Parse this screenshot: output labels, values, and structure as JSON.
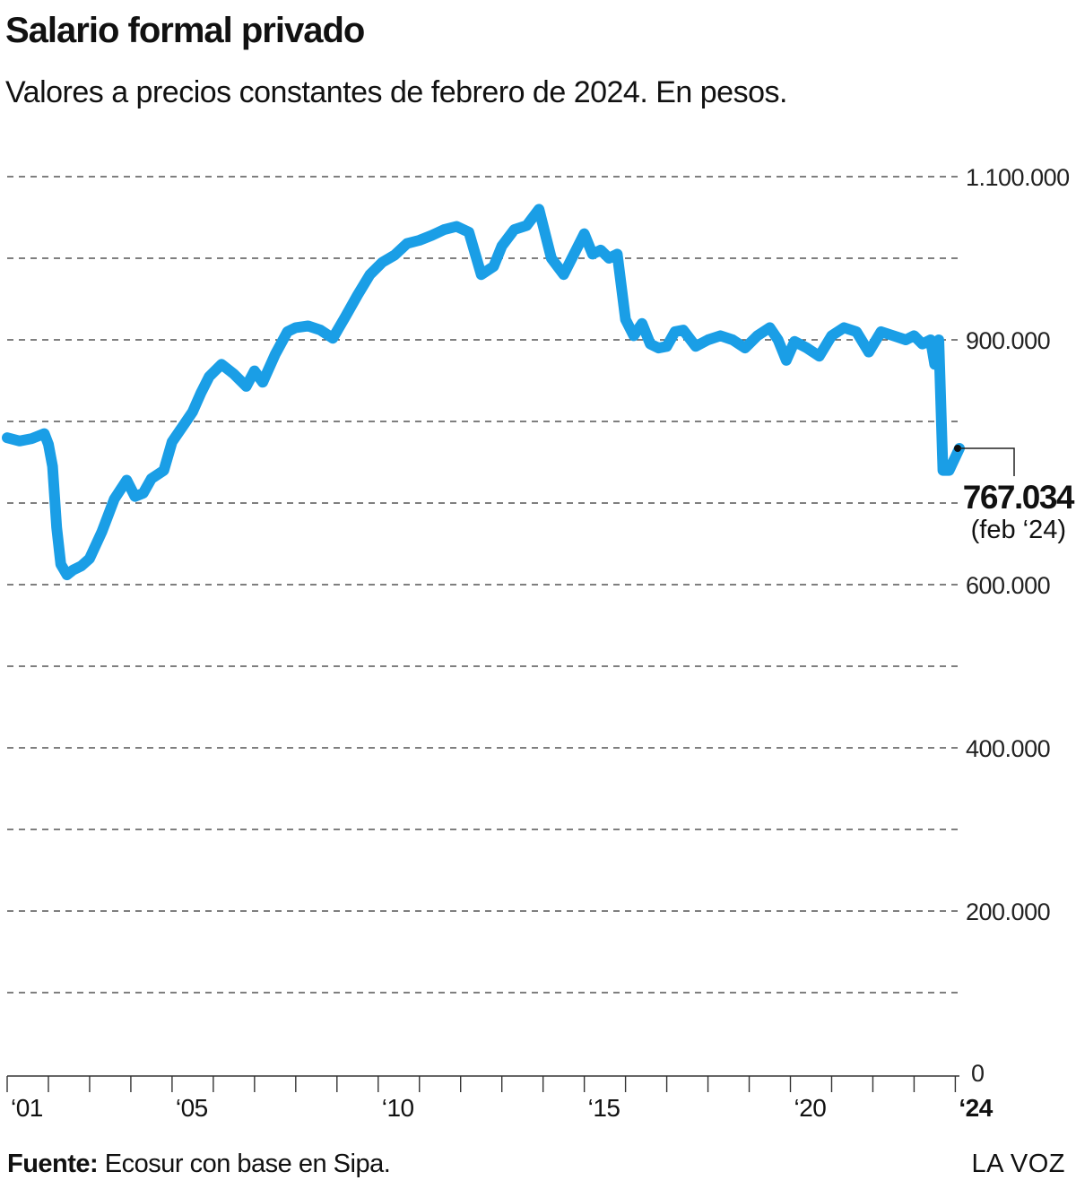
{
  "title": "Salario formal privado",
  "subtitle": "Valores a precios constantes de febrero de 2024. En pesos.",
  "source_label": "Fuente:",
  "source_text": " Ecosur con base en Sipa.",
  "brand": "LA VOZ",
  "colors": {
    "line": "#1a9ee6",
    "grid": "#333333",
    "text": "#111111"
  },
  "chart_data": {
    "type": "line",
    "ylim": [
      0,
      1100000
    ],
    "y_ticks": [
      0,
      100000,
      200000,
      300000,
      400000,
      500000,
      600000,
      700000,
      800000,
      900000,
      1000000,
      1100000
    ],
    "y_tick_labels": [
      {
        "value": 1100000,
        "label": "1.100.000"
      },
      {
        "value": 900000,
        "label": "900.000"
      },
      {
        "value": 600000,
        "label": "600.000"
      },
      {
        "value": 400000,
        "label": "400.000"
      },
      {
        "value": 200000,
        "label": "200.000"
      },
      {
        "value": 0,
        "label": "0"
      }
    ],
    "x_tick_labels": [
      {
        "year": 2001,
        "label": "‘01",
        "bold": false
      },
      {
        "year": 2005,
        "label": "‘05",
        "bold": false
      },
      {
        "year": 2010,
        "label": "‘10",
        "bold": false
      },
      {
        "year": 2015,
        "label": "‘15",
        "bold": false
      },
      {
        "year": 2020,
        "label": "‘20",
        "bold": false
      },
      {
        "year": 2024,
        "label": "‘24",
        "bold": true
      }
    ],
    "grid": "dashed-horizontal",
    "x": [
      2001.0,
      2001.3,
      2001.6,
      2001.9,
      2002.0,
      2002.1,
      2002.2,
      2002.3,
      2002.45,
      2002.6,
      2002.8,
      2003.0,
      2003.3,
      2003.6,
      2003.9,
      2004.1,
      2004.3,
      2004.5,
      2004.8,
      2005.0,
      2005.3,
      2005.5,
      2005.7,
      2005.9,
      2006.2,
      2006.5,
      2006.8,
      2007.0,
      2007.2,
      2007.5,
      2007.8,
      2008.0,
      2008.3,
      2008.6,
      2008.9,
      2009.2,
      2009.5,
      2009.8,
      2010.1,
      2010.4,
      2010.7,
      2011.0,
      2011.3,
      2011.6,
      2011.9,
      2012.2,
      2012.5,
      2012.8,
      2013.0,
      2013.3,
      2013.6,
      2013.9,
      2014.2,
      2014.5,
      2014.8,
      2015.0,
      2015.2,
      2015.4,
      2015.6,
      2015.8,
      2016.0,
      2016.2,
      2016.4,
      2016.6,
      2016.8,
      2017.0,
      2017.2,
      2017.4,
      2017.7,
      2018.0,
      2018.3,
      2018.6,
      2018.9,
      2019.2,
      2019.5,
      2019.7,
      2019.9,
      2020.1,
      2020.4,
      2020.7,
      2021.0,
      2021.3,
      2021.6,
      2021.9,
      2022.2,
      2022.5,
      2022.8,
      2023.0,
      2023.2,
      2023.4,
      2023.5,
      2023.6,
      2023.7,
      2023.85,
      2024.1
    ],
    "values": [
      780000,
      776000,
      779000,
      785000,
      772000,
      745000,
      670000,
      625000,
      612000,
      618000,
      623000,
      632000,
      665000,
      705000,
      728000,
      708000,
      712000,
      730000,
      740000,
      775000,
      797000,
      812000,
      835000,
      855000,
      870000,
      858000,
      843000,
      862000,
      848000,
      882000,
      910000,
      915000,
      917000,
      912000,
      902000,
      928000,
      955000,
      980000,
      995000,
      1004000,
      1018000,
      1022000,
      1028000,
      1035000,
      1039000,
      1032000,
      980000,
      990000,
      1015000,
      1035000,
      1040000,
      1060000,
      1000000,
      980000,
      1010000,
      1030000,
      1005000,
      1010000,
      1000000,
      1005000,
      925000,
      905000,
      920000,
      895000,
      890000,
      892000,
      910000,
      912000,
      892000,
      900000,
      905000,
      900000,
      890000,
      905000,
      915000,
      900000,
      875000,
      898000,
      890000,
      880000,
      905000,
      915000,
      910000,
      885000,
      910000,
      905000,
      900000,
      905000,
      895000,
      900000,
      870000,
      900000,
      740000,
      740000,
      767034
    ],
    "last_value_label": "767.034",
    "last_date_label": "(feb ‘24)"
  }
}
